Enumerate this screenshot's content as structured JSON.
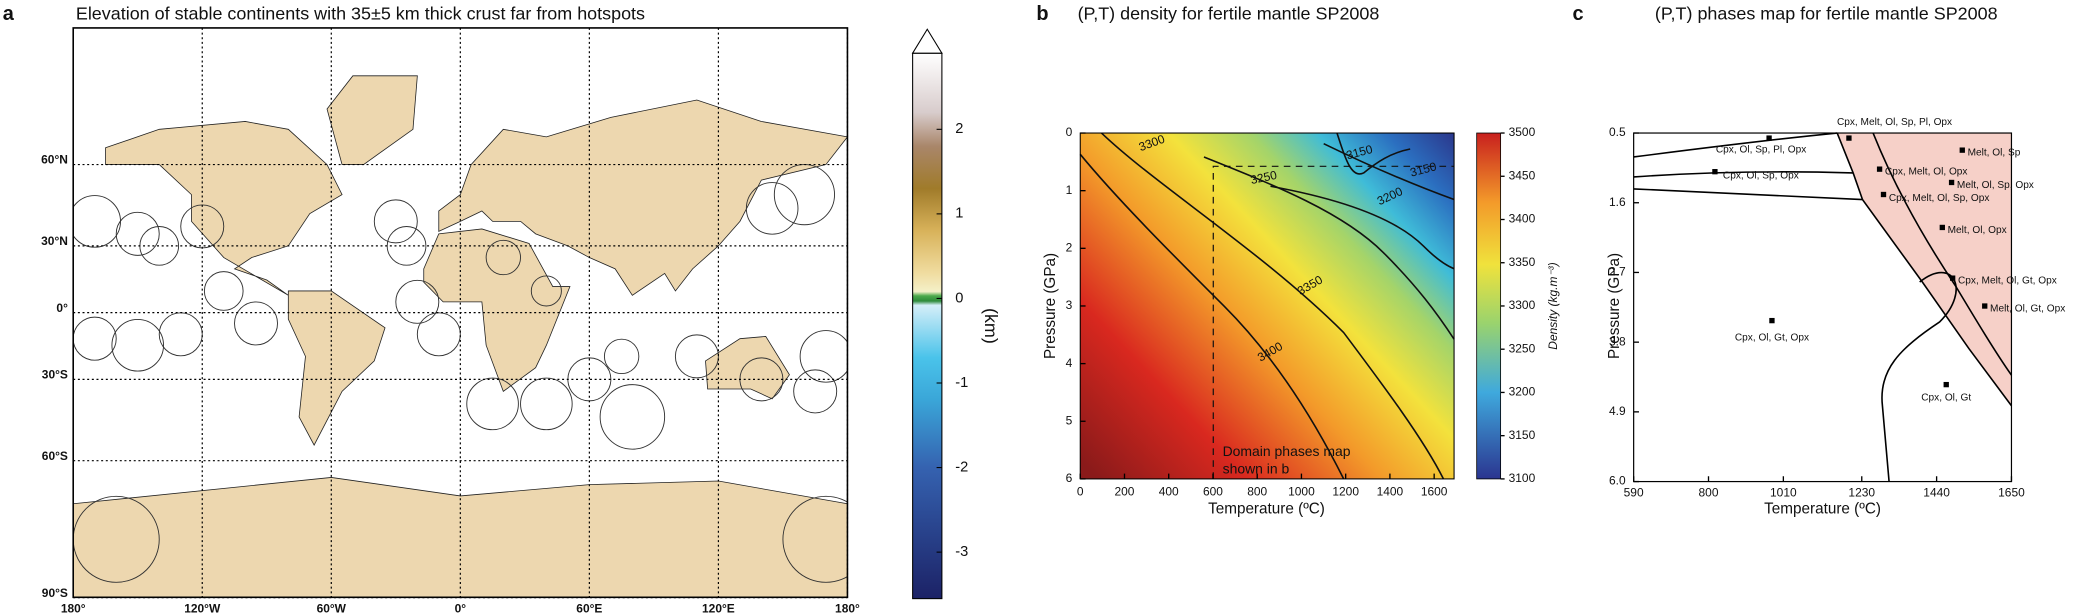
{
  "panel_a": {
    "letter": "a",
    "title": "Elevation of stable continents with 35±5 km thick crust far from hotspots",
    "xticks": [
      {
        "value": -180,
        "label": "180°"
      },
      {
        "value": -120,
        "label": "120°W"
      },
      {
        "value": -60,
        "label": "60°W"
      },
      {
        "value": 0,
        "label": "0°"
      },
      {
        "value": 60,
        "label": "60°E"
      },
      {
        "value": 120,
        "label": "120°E"
      },
      {
        "value": 180,
        "label": "180°"
      }
    ],
    "yticks": [
      {
        "value": 60,
        "label": "60°N"
      },
      {
        "value": 30,
        "label": "30°N"
      },
      {
        "value": 0,
        "label": "0°"
      },
      {
        "value": -30,
        "label": "30°S"
      },
      {
        "value": -60,
        "label": "60°S"
      },
      {
        "value": -90,
        "label": "90°S"
      }
    ],
    "colorbar": {
      "label": "(km)",
      "lim": [
        -3.55,
        2.9
      ],
      "ticks": [
        2,
        1,
        0,
        -1,
        -2,
        -3
      ]
    }
  },
  "panel_b": {
    "letter": "b",
    "title": "(P,T) density for fertile mantle SP2008",
    "xlabel": "Temperature (ºC)",
    "ylabel": "Pressure (GPa)",
    "xlim": [
      0,
      1690
    ],
    "xticks": [
      0,
      200,
      400,
      600,
      800,
      1000,
      1200,
      1400,
      1600
    ],
    "ylim": [
      0,
      6
    ],
    "yticks": [
      0,
      1,
      2,
      3,
      4,
      5,
      6
    ],
    "colorbar": {
      "label": "Density (kg.m⁻³)",
      "lim": [
        3100,
        3500
      ],
      "ticks": [
        3100,
        3150,
        3200,
        3250,
        3300,
        3350,
        3400,
        3450,
        3500
      ]
    },
    "contour_labels": [
      3300,
      3150,
      3150,
      3200,
      3250,
      3350,
      3400
    ],
    "annotation": [
      "Domain phases map",
      "shown in b"
    ]
  },
  "panel_c": {
    "letter": "c",
    "title": "(P,T) phases map for fertile mantle SP2008",
    "xlabel": "Temperature (ºC)",
    "ylabel": "Pressure (GPa)",
    "xlim": [
      590,
      1650
    ],
    "xticks": [
      590,
      800,
      1010,
      1230,
      1440,
      1650
    ],
    "ylim": [
      0.5,
      6
    ],
    "yticks": [
      0.5,
      1.6,
      2.7,
      3.8,
      4.9,
      {
        "value": 6,
        "label": "6.0"
      }
    ],
    "phases": [
      {
        "label": "Cpx, Melt, Ol, Sp, Pl, Opx",
        "T": 1194,
        "P": 0.58
      },
      {
        "label": "Cpx, Ol, Sp, Pl, Opx",
        "T": 970,
        "P": 0.58
      },
      {
        "label": "Cpx, Ol, Sp, Opx",
        "T": 818,
        "P": 1.11
      },
      {
        "label": "Melt, Ol, Sp",
        "T": 1512,
        "P": 0.77
      },
      {
        "label": "Cpx, Melt, Ol, Opx",
        "T": 1280,
        "P": 1.07
      },
      {
        "label": "Melt, Ol, Sp, Opx",
        "T": 1482,
        "P": 1.28
      },
      {
        "label": "Cpx, Melt, Ol, Sp, Opx",
        "T": 1291,
        "P": 1.47
      },
      {
        "label": "Melt, Ol, Opx",
        "T": 1456,
        "P": 1.99
      },
      {
        "label": "Cpx, Melt, Ol, Gt, Opx",
        "T": 1485,
        "P": 2.79
      },
      {
        "label": "Melt, Ol, Gt, Opx",
        "T": 1575,
        "P": 3.23
      },
      {
        "label": "Cpx, Ol, Gt, Opx",
        "T": 978,
        "P": 3.46
      },
      {
        "label": "Cpx, Ol, Gt",
        "T": 1467,
        "P": 4.47
      }
    ]
  }
}
